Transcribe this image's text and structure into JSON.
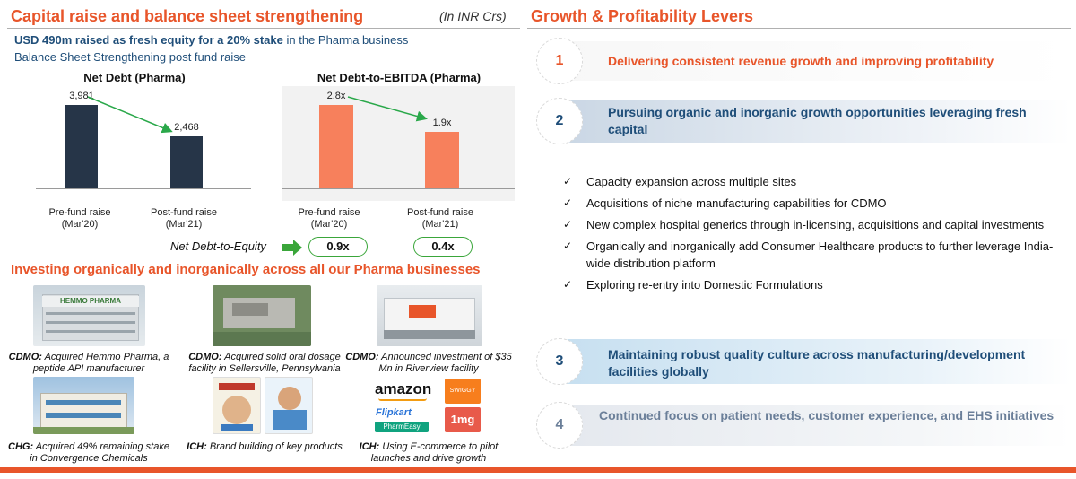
{
  "left": {
    "title": "Capital raise and balance sheet strengthening",
    "unit_note": "(In INR Crs)",
    "sub1_bold": "USD 490m raised as fresh equity for a 20% stake",
    "sub1_rest": " in the Pharma business",
    "sub2": "Balance Sheet Strengthening post fund raise"
  },
  "chart_data": [
    {
      "type": "bar",
      "title": "Net Debt (Pharma)",
      "categories": [
        "Pre-fund raise (Mar'20)",
        "Post-fund raise (Mar'21)"
      ],
      "category_lines": [
        [
          "Pre-fund raise",
          "(Mar'20)"
        ],
        [
          "Post-fund raise",
          "(Mar'21)"
        ]
      ],
      "values": [
        3981,
        2468
      ],
      "value_labels": [
        "3,981",
        "2,468"
      ],
      "color": "#263548",
      "ylim": [
        0,
        4200
      ]
    },
    {
      "type": "bar",
      "title": "Net Debt-to-EBITDA (Pharma)",
      "categories": [
        "Pre-fund raise (Mar'20)",
        "Post-fund raise (Mar'21)"
      ],
      "category_lines": [
        [
          "Pre-fund raise",
          "(Mar'20)"
        ],
        [
          "Post-fund raise",
          "(Mar'21)"
        ]
      ],
      "values": [
        2.8,
        1.9
      ],
      "value_labels": [
        "2.8x",
        "1.9x"
      ],
      "color": "#f7805c",
      "ylim": [
        0,
        2.95
      ]
    }
  ],
  "equity": {
    "label": "Net Debt-to-Equity",
    "pre": "0.9x",
    "post": "0.4x"
  },
  "invest": {
    "title": "Investing organically and inorganically across all our Pharma businesses",
    "items": [
      {
        "bold": "CDMO:",
        "rest": " Acquired Hemmo Pharma, a peptide API manufacturer",
        "sign": "HEMMO PHARMA"
      },
      {
        "bold": "CDMO:",
        "rest": " Acquired solid oral dosage facility in Sellersville, Pennsylvania"
      },
      {
        "bold": "CDMO:",
        "rest": " Announced investment of $35 Mn in Riverview facility"
      },
      {
        "bold": "CHG:",
        "rest": " Acquired 49% remaining stake in Convergence Chemicals"
      },
      {
        "bold": "ICH:",
        "rest": " Brand building of key products"
      },
      {
        "bold": "ICH:",
        "rest": " Using E-commerce to pilot launches and drive growth"
      }
    ],
    "logos": {
      "amazon": "amazon",
      "flipkart": "Flipkart",
      "pharmeasy": "PharmEasy",
      "one_mg": "1mg",
      "swiggy": "SWIGGY"
    }
  },
  "right": {
    "title": "Growth & Profitability Levers",
    "levers": [
      {
        "num": "1",
        "text": "Delivering consistent revenue growth and improving profitability",
        "color": "#e8552a"
      },
      {
        "num": "2",
        "text": "Pursuing organic and inorganic growth opportunities leveraging fresh capital",
        "color": "#1f4e79"
      },
      {
        "num": "3",
        "text": "Maintaining robust quality culture across manufacturing/development facilities globally",
        "color": "#1f4e79"
      },
      {
        "num": "4",
        "text": "Continued focus on patient needs, customer experience, and EHS initiatives",
        "color": "#6b7f99"
      }
    ],
    "bullets": [
      "Capacity expansion across multiple sites",
      "Acquisitions of niche manufacturing capabilities for CDMO",
      "New complex hospital generics through in-licensing, acquisitions and capital investments",
      "Organically and inorganically add Consumer Healthcare products to further leverage India-wide distribution platform",
      "Exploring re-entry into Domestic Formulations"
    ],
    "check_glyph": "✓"
  },
  "colors": {
    "accent": "#e8552a",
    "navy": "#1f4e79",
    "bar_dark": "#263548",
    "bar_orange": "#f7805c",
    "green": "#3aa63a"
  }
}
